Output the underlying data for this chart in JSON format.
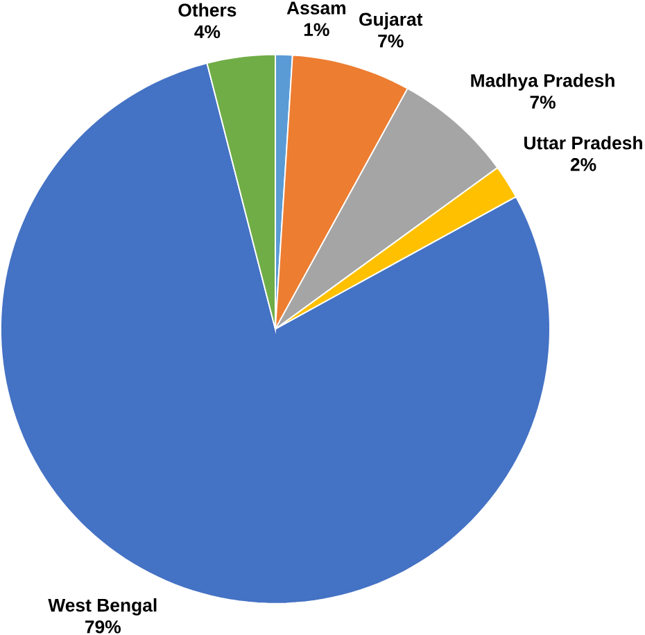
{
  "chart_data": {
    "type": "pie",
    "categories": [
      "Assam",
      "Gujarat",
      "Madhya Pradesh",
      "Uttar Pradesh",
      "West Bengal",
      "Others"
    ],
    "values": [
      1,
      7,
      7,
      2,
      79,
      4
    ],
    "value_labels": [
      "1%",
      "7%",
      "7%",
      "2%",
      "79%",
      "4%"
    ],
    "colors": [
      "#5b9bd5",
      "#ed7d31",
      "#a5a5a5",
      "#ffc000",
      "#4472c4",
      "#70ad47"
    ]
  }
}
